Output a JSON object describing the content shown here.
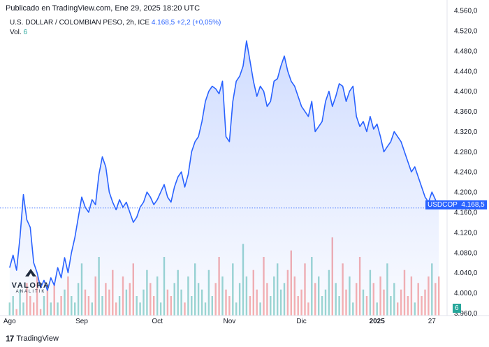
{
  "header": {
    "published": "Publicado en TradingView.com, Ene 29, 2025 18:20 UTC",
    "symbol_line": "U.S. DOLLAR / COLOMBIAN PESO, 2h, ICE",
    "price": "4.168,5",
    "change": "+2,2 (+0,05%)",
    "volume_label": "Vol.",
    "volume_value": "6"
  },
  "price_tag": {
    "ticker": "USDCOP",
    "price": "4.168,5",
    "volume": "6"
  },
  "footer": {
    "brand": "TradingView"
  },
  "watermark": {
    "name": "VALORA",
    "sub": "ANALITIK"
  },
  "colors": {
    "line": "#2962ff",
    "vol_up": "#26a69a",
    "vol_down": "#ef5350",
    "tag_bg": "#2962ff",
    "vol_tag_bg": "#26a69a"
  },
  "chart_data": {
    "type": "area",
    "title": "U.S. DOLLAR / COLOMBIAN PESO, 2h, ICE",
    "y_ticks": [
      "4.560,0",
      "4.520,0",
      "4.480,0",
      "4.440,0",
      "4.400,0",
      "4.360,0",
      "4.320,0",
      "4.280,0",
      "4.240,0",
      "4.200,0",
      "4.160,0",
      "4.120,0",
      "4.080,0",
      "4.040,0",
      "4.000,0",
      "3.960,0"
    ],
    "y_tick_values": [
      4560,
      4520,
      4480,
      4440,
      4400,
      4360,
      4320,
      4280,
      4240,
      4200,
      4160,
      4120,
      4080,
      4040,
      4000,
      3960
    ],
    "ylim": [
      3955,
      4570
    ],
    "x_ticks": [
      "Ago",
      "Sep",
      "Oct",
      "Nov",
      "Dic",
      "2025",
      "27"
    ],
    "x_tick_positions": [
      0.0,
      21,
      43,
      64,
      85,
      107,
      123
    ],
    "xlim": [
      -2,
      127
    ],
    "last_value": 4168.5,
    "series": [
      {
        "name": "USDCOP",
        "x": [
          0,
          1,
          2,
          3,
          4,
          5,
          6,
          7,
          8,
          9,
          10,
          11,
          12,
          13,
          14,
          15,
          16,
          17,
          18,
          19,
          20,
          21,
          22,
          23,
          24,
          25,
          26,
          27,
          28,
          29,
          30,
          31,
          32,
          33,
          34,
          35,
          36,
          37,
          38,
          39,
          40,
          41,
          42,
          43,
          44,
          45,
          46,
          47,
          48,
          49,
          50,
          51,
          52,
          53,
          54,
          55,
          56,
          57,
          58,
          59,
          60,
          61,
          62,
          63,
          64,
          65,
          66,
          67,
          68,
          69,
          70,
          71,
          72,
          73,
          74,
          75,
          76,
          77,
          78,
          79,
          80,
          81,
          82,
          83,
          84,
          85,
          86,
          87,
          88,
          89,
          90,
          91,
          92,
          93,
          94,
          95,
          96,
          97,
          98,
          99,
          100,
          101,
          102,
          103,
          104,
          105,
          106,
          107,
          108,
          109,
          110,
          111,
          112,
          113,
          114,
          115,
          116,
          117,
          118,
          119,
          120,
          121,
          122,
          123,
          124,
          125
        ],
        "values": [
          4050,
          4075,
          4045,
          4110,
          4195,
          4145,
          4130,
          4060,
          4040,
          4010,
          4025,
          4005,
          4030,
          4015,
          4050,
          4030,
          4070,
          4040,
          4080,
          4110,
          4150,
          4190,
          4170,
          4160,
          4185,
          4175,
          4235,
          4270,
          4250,
          4200,
          4180,
          4165,
          4185,
          4170,
          4180,
          4160,
          4140,
          4150,
          4170,
          4180,
          4200,
          4190,
          4175,
          4185,
          4200,
          4215,
          4190,
          4180,
          4210,
          4230,
          4240,
          4210,
          4235,
          4280,
          4300,
          4310,
          4340,
          4380,
          4400,
          4410,
          4405,
          4395,
          4420,
          4310,
          4300,
          4380,
          4420,
          4430,
          4450,
          4500,
          4460,
          4420,
          4390,
          4410,
          4400,
          4370,
          4380,
          4420,
          4425,
          4450,
          4470,
          4440,
          4420,
          4410,
          4390,
          4370,
          4360,
          4350,
          4380,
          4320,
          4330,
          4340,
          4380,
          4400,
          4370,
          4390,
          4415,
          4410,
          4380,
          4400,
          4410,
          4350,
          4330,
          4340,
          4320,
          4350,
          4325,
          4335,
          4310,
          4280,
          4290,
          4300,
          4320,
          4310,
          4300,
          4280,
          4260,
          4240,
          4250,
          4230,
          4210,
          4190,
          4180,
          4200,
          4185,
          4168.5
        ]
      }
    ],
    "volume": {
      "name": "Vol.",
      "values": [
        2,
        3,
        1,
        4,
        2,
        5,
        3,
        2,
        6,
        1,
        3,
        4,
        2,
        5,
        2,
        3,
        4,
        6,
        3,
        2,
        5,
        8,
        4,
        3,
        2,
        6,
        9,
        3,
        5,
        4,
        7,
        2,
        3,
        6,
        4,
        5,
        8,
        3,
        2,
        4,
        7,
        5,
        3,
        6,
        2,
        9,
        4,
        3,
        5,
        7,
        4,
        2,
        6,
        3,
        8,
        5,
        4,
        2,
        7,
        3,
        5,
        9,
        6,
        4,
        3,
        8,
        2,
        5,
        11,
        6,
        3,
        7,
        4,
        2,
        9,
        5,
        3,
        6,
        8,
        4,
        5,
        7,
        10,
        6,
        3,
        4,
        8,
        2,
        9,
        5,
        6,
        3,
        4,
        7,
        12,
        5,
        3,
        8,
        4,
        6,
        2,
        5,
        9,
        4,
        3,
        7,
        5,
        2,
        6,
        4,
        8,
        3,
        5,
        2,
        4,
        7,
        3,
        6,
        2,
        5,
        3,
        4,
        6,
        8,
        5,
        6
      ]
    }
  }
}
